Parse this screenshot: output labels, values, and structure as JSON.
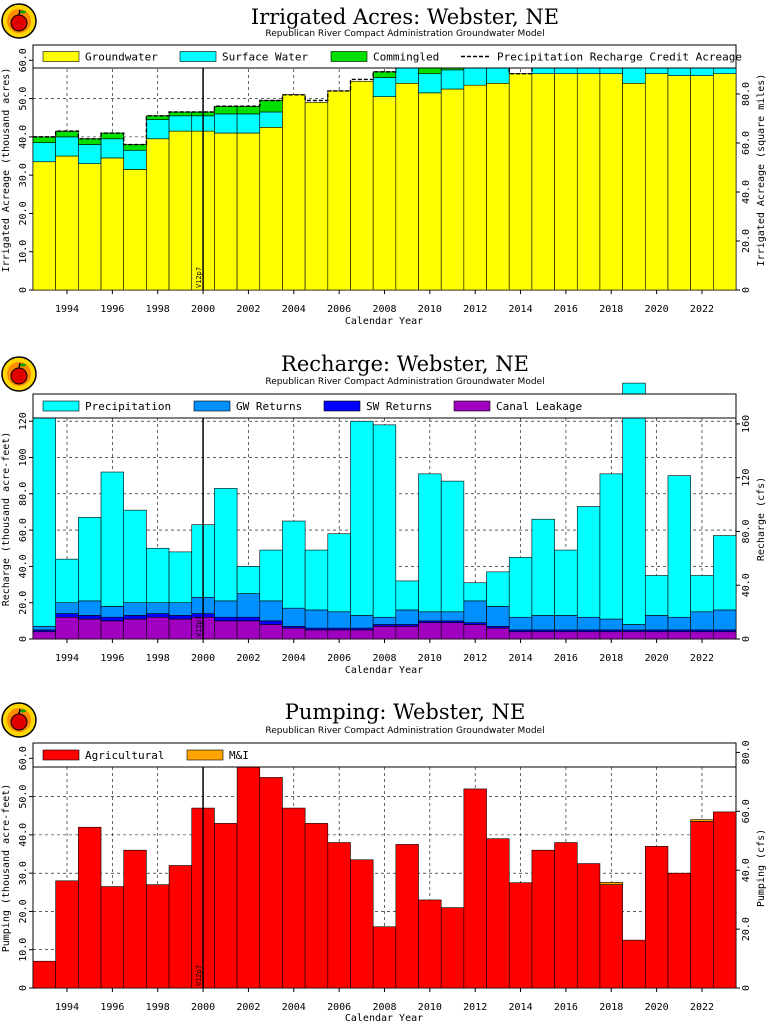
{
  "logo_label": "apple-logo",
  "chart_data": [
    {
      "type": "bar",
      "stacked": true,
      "title": "Irrigated Acres: Webster, NE",
      "subtitle": "Republican River Compact Administration Groundwater Model",
      "xlabel": "Calendar Year",
      "ylabel": "Irrigated Acreage (thousand acres)",
      "ylabel_right": "Irrigated Acreage (square miles)",
      "categories": [
        1993,
        1994,
        1995,
        1996,
        1997,
        1998,
        1999,
        2000,
        2001,
        2002,
        2003,
        2004,
        2005,
        2006,
        2007,
        2008,
        2009,
        2010,
        2011,
        2012,
        2013,
        2014,
        2015,
        2016,
        2017,
        2018,
        2019,
        2020,
        2021,
        2022,
        2023
      ],
      "x_ticks": [
        "1994",
        "1996",
        "1998",
        "2000",
        "2002",
        "2004",
        "2006",
        "2008",
        "2010",
        "2012",
        "2014",
        "2016",
        "2018",
        "2020",
        "2022"
      ],
      "ylim": [
        0,
        64
      ],
      "y_ticks": [
        "0",
        "10.0",
        "20.0",
        "30.0",
        "40.0",
        "50.0",
        "60.0"
      ],
      "y2_ticks": [
        "0",
        "20.0",
        "40.0",
        "60.0",
        "80.0"
      ],
      "grid": true,
      "legend_position": "top",
      "annotation": "V12p7",
      "annotation_year": 2000.5,
      "series": [
        {
          "name": "Groundwater",
          "color": "#ffff00",
          "values": [
            33.5,
            35,
            33,
            34.5,
            31.5,
            39.5,
            41.5,
            41.5,
            41,
            41,
            42.5,
            51,
            49,
            52,
            54.5,
            50.5,
            54,
            51.5,
            52.5,
            53.5,
            54,
            56.5,
            56.5,
            56.5,
            56.5,
            56.5,
            54,
            56.5,
            56,
            56,
            56.5
          ]
        },
        {
          "name": "Surface Water",
          "color": "#00ffff",
          "values": [
            5,
            5,
            5,
            5,
            5,
            5,
            4,
            4,
            5,
            5,
            4,
            0,
            0,
            0,
            0,
            5,
            5,
            5,
            5,
            5,
            5,
            0,
            6,
            6,
            6,
            6,
            6,
            6,
            6,
            6,
            6
          ]
        },
        {
          "name": "Commingled",
          "color": "#00e000",
          "values": [
            1.5,
            1.5,
            1.5,
            1.5,
            1.5,
            1,
            1,
            1,
            2,
            2,
            3,
            0,
            0,
            0,
            0,
            1.5,
            2,
            2,
            2,
            1.5,
            1.5,
            0,
            0,
            0,
            0,
            0,
            0,
            0,
            0,
            0,
            0
          ]
        }
      ],
      "overlay_line": {
        "name": "Precipitation Recharge Credit Acreage",
        "style": "dashed",
        "values": [
          40,
          41.5,
          39.5,
          41,
          38,
          45.5,
          46.5,
          46.5,
          48,
          48,
          49.5,
          51,
          49.5,
          52,
          55,
          57,
          61,
          59,
          59.5,
          60,
          60.5,
          56.5,
          62.5,
          62.5,
          62.5,
          62.5,
          60,
          62.5,
          62,
          62,
          62.5
        ]
      }
    },
    {
      "type": "bar",
      "stacked": true,
      "title": "Recharge: Webster, NE",
      "subtitle": "Republican River Compact Administration Groundwater Model",
      "xlabel": "Calendar Year",
      "ylabel": "Recharge (thousand acre-feet)",
      "ylabel_right": "Recharge (cfs)",
      "categories": [
        1993,
        1994,
        1995,
        1996,
        1997,
        1998,
        1999,
        2000,
        2001,
        2002,
        2003,
        2004,
        2005,
        2006,
        2007,
        2008,
        2009,
        2010,
        2011,
        2012,
        2013,
        2014,
        2015,
        2016,
        2017,
        2018,
        2019,
        2020,
        2021,
        2022,
        2023
      ],
      "x_ticks": [
        "1994",
        "1996",
        "1998",
        "2000",
        "2002",
        "2004",
        "2006",
        "2008",
        "2010",
        "2012",
        "2014",
        "2016",
        "2018",
        "2020",
        "2022"
      ],
      "ylim": [
        0,
        135
      ],
      "y_ticks": [
        "0",
        "20.0",
        "40.0",
        "60.0",
        "80.0",
        "100",
        "120"
      ],
      "y2_ticks": [
        "0",
        "40.0",
        "80.0",
        "120",
        "160"
      ],
      "grid": true,
      "legend_position": "top",
      "annotation": "V12p7",
      "annotation_year": 2000.5,
      "series": [
        {
          "name": "Canal Leakage",
          "color": "#a000c0",
          "values": [
            4,
            12,
            11,
            10,
            11,
            12,
            11,
            12,
            10,
            10,
            8,
            6,
            5,
            5,
            5,
            7,
            7,
            9,
            9,
            8,
            6,
            4,
            4,
            4,
            4,
            4,
            4,
            4,
            4,
            4,
            4
          ]
        },
        {
          "name": "SW Returns",
          "color": "#0000ff",
          "values": [
            1,
            2,
            2,
            2,
            2,
            2,
            2,
            2,
            2,
            2,
            2,
            1,
            1,
            1,
            1,
            1,
            1,
            1,
            1,
            1,
            1,
            1,
            1,
            1,
            1,
            1,
            1,
            1,
            1,
            1,
            1
          ]
        },
        {
          "name": "GW Returns",
          "color": "#0090ff",
          "values": [
            2,
            6,
            8,
            6,
            7,
            6,
            7,
            9,
            9,
            13,
            11,
            10,
            10,
            9,
            7,
            4,
            8,
            5,
            5,
            12,
            11,
            7,
            8,
            8,
            7,
            6,
            3,
            8,
            7,
            10,
            11
          ]
        },
        {
          "name": "Precipitation",
          "color": "#00ffff",
          "values": [
            127,
            24,
            46,
            74,
            51,
            30,
            28,
            40,
            62,
            15,
            28,
            48,
            33,
            43,
            107,
            106,
            16,
            76,
            72,
            10,
            19,
            33,
            53,
            36,
            61,
            80,
            133,
            22,
            78,
            20,
            41
          ]
        }
      ]
    },
    {
      "type": "bar",
      "stacked": true,
      "title": "Pumping: Webster, NE",
      "subtitle": "Republican River Compact Administration Groundwater Model",
      "xlabel": "Calendar Year",
      "ylabel": "Pumping (thousand acre-feet)",
      "ylabel_right": "Pumping (cfs)",
      "categories": [
        1993,
        1994,
        1995,
        1996,
        1997,
        1998,
        1999,
        2000,
        2001,
        2002,
        2003,
        2004,
        2005,
        2006,
        2007,
        2008,
        2009,
        2010,
        2011,
        2012,
        2013,
        2014,
        2015,
        2016,
        2017,
        2018,
        2019,
        2020,
        2021,
        2022,
        2023
      ],
      "x_ticks": [
        "1994",
        "1996",
        "1998",
        "2000",
        "2002",
        "2004",
        "2006",
        "2008",
        "2010",
        "2012",
        "2014",
        "2016",
        "2018",
        "2020",
        "2022"
      ],
      "ylim": [
        0,
        64
      ],
      "y_ticks": [
        "0",
        "10.0",
        "20.0",
        "30.0",
        "40.0",
        "50.0",
        "60.0"
      ],
      "y2_ticks": [
        "0",
        "20.0",
        "40.0",
        "60.0",
        "80.0"
      ],
      "grid": true,
      "legend_position": "top",
      "annotation": "V12p7",
      "annotation_year": 2000.5,
      "series": [
        {
          "name": "Agricultural",
          "color": "#ff0000",
          "values": [
            7,
            28,
            42,
            26.5,
            36,
            27,
            32,
            47,
            43,
            63.5,
            55,
            47,
            43,
            38,
            33.5,
            16,
            37.5,
            23,
            21,
            52,
            39,
            27.5,
            36,
            38,
            32.5,
            27,
            12.5,
            37,
            30,
            43.5,
            46
          ]
        },
        {
          "name": "M&I",
          "color": "#ffa500",
          "values": [
            0,
            0,
            0,
            0,
            0,
            0,
            0,
            0,
            0,
            0,
            0,
            0,
            0,
            0,
            0,
            0,
            0,
            0,
            0,
            0,
            0,
            0,
            0,
            0,
            0,
            0.6,
            0,
            0,
            0,
            0.5,
            0
          ]
        }
      ]
    }
  ]
}
